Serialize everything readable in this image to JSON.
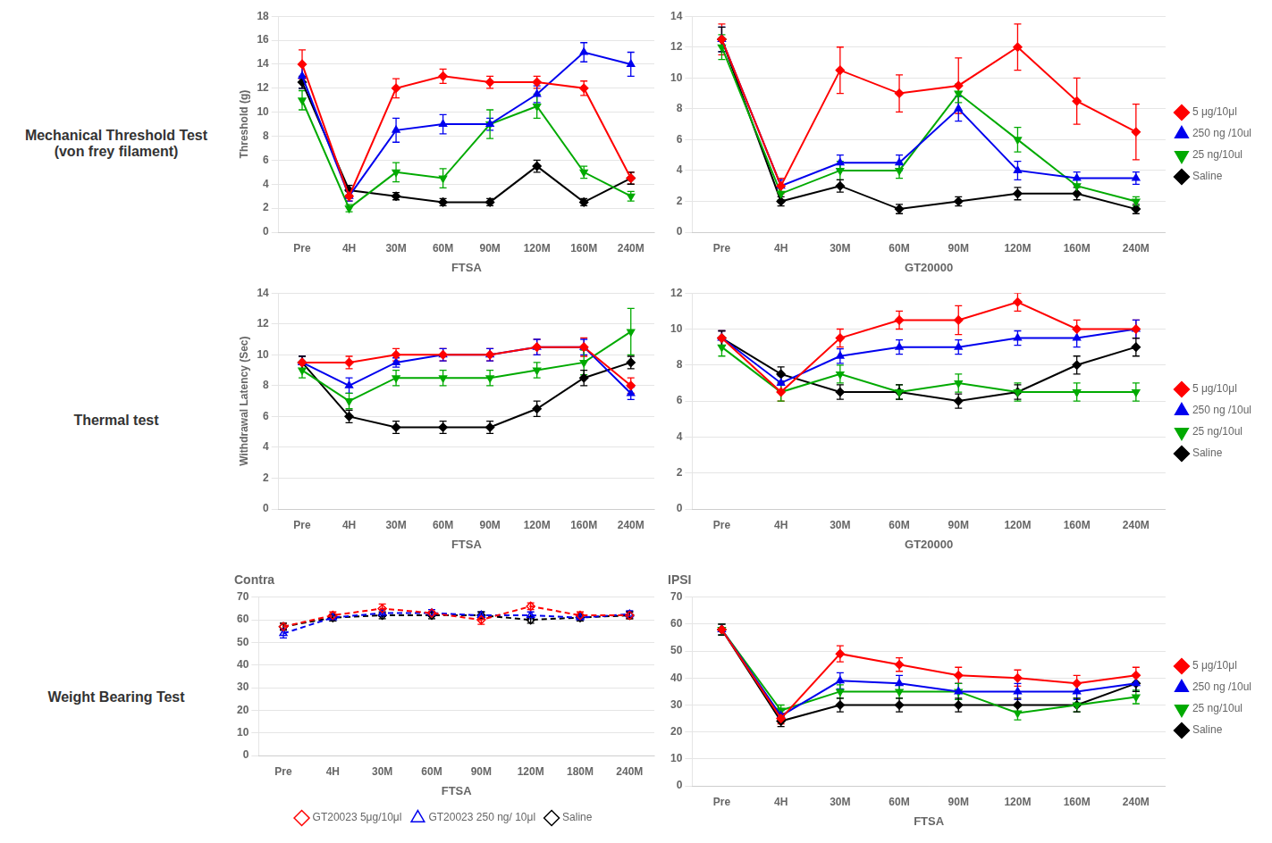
{
  "chart_data": [
    {
      "type": "line",
      "x_label": "FTSA",
      "y_label": "Threshold (g)",
      "annotations": [
        "Mechanical Threshold Test\n(von frey filament)"
      ],
      "categories": [
        "Pre",
        "4H",
        "30M",
        "60M",
        "90M",
        "120M",
        "160M",
        "240M"
      ],
      "ylim": [
        0,
        18
      ],
      "yticks": [
        0,
        2,
        4,
        6,
        8,
        10,
        12,
        14,
        16,
        18
      ],
      "grid": "y",
      "series": [
        {
          "name": "5 μg/10μl",
          "color": "#FF0000",
          "marker": "diamond",
          "line_style": "solid",
          "values": [
            14.0,
            3.0,
            12.0,
            13.0,
            12.5,
            12.5,
            12.0,
            4.5
          ],
          "errors": [
            1.2,
            0.4,
            0.8,
            0.6,
            0.5,
            0.5,
            0.6,
            0.5
          ]
        },
        {
          "name": "250 ng /10ul",
          "color": "#0000EE",
          "marker": "triangle-up",
          "line_style": "solid",
          "values": [
            13.0,
            3.0,
            8.5,
            9.0,
            9.0,
            11.5,
            15.0,
            14.0
          ],
          "errors": [
            1.0,
            0.4,
            1.0,
            0.8,
            0.5,
            0.7,
            0.8,
            1.0
          ]
        },
        {
          "name": "25 ng/10ul",
          "color": "#00AA00",
          "marker": "triangle-down",
          "line_style": "solid",
          "values": [
            11.0,
            2.0,
            5.0,
            4.5,
            9.0,
            10.5,
            5.0,
            3.0
          ],
          "errors": [
            0.8,
            0.3,
            0.8,
            0.8,
            1.2,
            1.0,
            0.5,
            0.4
          ]
        },
        {
          "name": "Saline",
          "color": "#000000",
          "marker": "diamond",
          "line_style": "solid",
          "values": [
            12.5,
            3.5,
            3.0,
            2.5,
            2.5,
            5.5,
            2.5,
            4.5
          ],
          "errors": [
            0.5,
            0.4,
            0.3,
            0.3,
            0.3,
            0.5,
            0.3,
            0.5
          ]
        }
      ]
    },
    {
      "type": "line",
      "x_label": "GT20000",
      "legend": "right",
      "categories": [
        "Pre",
        "4H",
        "30M",
        "60M",
        "90M",
        "120M",
        "160M",
        "240M"
      ],
      "ylim": [
        0,
        14
      ],
      "yticks": [
        0,
        2,
        4,
        6,
        8,
        10,
        12,
        14
      ],
      "grid": "y",
      "series": [
        {
          "name": "5 μg/10μl",
          "color": "#FF0000",
          "marker": "diamond",
          "line_style": "solid",
          "values": [
            12.5,
            3.0,
            10.5,
            9.0,
            9.5,
            12.0,
            8.5,
            6.5
          ],
          "errors": [
            1.0,
            0.5,
            1.5,
            1.2,
            1.8,
            1.5,
            1.5,
            1.8
          ]
        },
        {
          "name": "250 ng /10ul",
          "color": "#0000EE",
          "marker": "triangle-up",
          "line_style": "solid",
          "values": [
            12.5,
            3.0,
            4.5,
            4.5,
            8.0,
            4.0,
            3.5,
            3.5
          ],
          "errors": [
            0.8,
            0.4,
            0.5,
            0.5,
            0.8,
            0.6,
            0.4,
            0.4
          ]
        },
        {
          "name": "25 ng/10ul",
          "color": "#00AA00",
          "marker": "triangle-down",
          "line_style": "solid",
          "values": [
            12.0,
            2.5,
            4.0,
            4.0,
            9.0,
            6.0,
            3.0,
            2.0
          ],
          "errors": [
            0.8,
            0.4,
            0.6,
            0.5,
            0.6,
            0.8,
            0.5,
            0.3
          ]
        },
        {
          "name": "Saline",
          "color": "#000000",
          "marker": "diamond",
          "line_style": "solid",
          "values": [
            12.5,
            2.0,
            3.0,
            1.5,
            2.0,
            2.5,
            2.5,
            1.5
          ],
          "errors": [
            0.8,
            0.3,
            0.4,
            0.3,
            0.3,
            0.4,
            0.4,
            0.3
          ]
        }
      ]
    },
    {
      "type": "line",
      "x_label": "FTSA",
      "y_label": "Withdrawal Latency (Sec)",
      "annotations": [
        "Thermal test"
      ],
      "categories": [
        "Pre",
        "4H",
        "30M",
        "60M",
        "90M",
        "120M",
        "160M",
        "240M"
      ],
      "ylim": [
        0,
        14
      ],
      "yticks": [
        0,
        2,
        4,
        6,
        8,
        10,
        12,
        14
      ],
      "grid": "y",
      "series": [
        {
          "name": "5 μg/10μl",
          "color": "#FF0000",
          "marker": "diamond",
          "line_style": "solid",
          "values": [
            9.5,
            9.5,
            10.0,
            10.0,
            10.0,
            10.5,
            10.5,
            8.0
          ],
          "errors": [
            0.4,
            0.4,
            0.4,
            0.4,
            0.4,
            0.5,
            0.6,
            0.5
          ]
        },
        {
          "name": "250 ng /10ul",
          "color": "#0000EE",
          "marker": "triangle-up",
          "line_style": "solid",
          "values": [
            9.5,
            8.0,
            9.5,
            10.0,
            10.0,
            10.5,
            10.5,
            7.5
          ],
          "errors": [
            0.4,
            0.5,
            0.3,
            0.4,
            0.4,
            0.5,
            0.5,
            0.4
          ]
        },
        {
          "name": "25 ng/10ul",
          "color": "#00AA00",
          "marker": "triangle-down",
          "line_style": "solid",
          "values": [
            9.0,
            7.0,
            8.5,
            8.5,
            8.5,
            9.0,
            9.5,
            11.5
          ],
          "errors": [
            0.5,
            0.5,
            0.5,
            0.5,
            0.5,
            0.5,
            0.8,
            1.5
          ]
        },
        {
          "name": "Saline",
          "color": "#000000",
          "marker": "diamond",
          "line_style": "solid",
          "values": [
            9.5,
            6.0,
            5.3,
            5.3,
            5.3,
            6.5,
            8.5,
            9.5
          ],
          "errors": [
            0.4,
            0.4,
            0.4,
            0.4,
            0.4,
            0.5,
            0.5,
            0.4
          ]
        }
      ]
    },
    {
      "type": "line",
      "x_label": "GT20000",
      "legend": "right",
      "categories": [
        "Pre",
        "4H",
        "30M",
        "60M",
        "90M",
        "120M",
        "160M",
        "240M"
      ],
      "ylim": [
        0,
        12
      ],
      "yticks": [
        0,
        2,
        4,
        6,
        8,
        10,
        12
      ],
      "grid": "y",
      "series": [
        {
          "name": "5 μg/10μl",
          "color": "#FF0000",
          "marker": "diamond",
          "line_style": "solid",
          "values": [
            9.5,
            6.5,
            9.5,
            10.5,
            10.5,
            11.5,
            10.0,
            10.0
          ],
          "errors": [
            0.4,
            0.5,
            0.5,
            0.5,
            0.8,
            0.5,
            0.5,
            0.5
          ]
        },
        {
          "name": "250 ng /10ul",
          "color": "#0000EE",
          "marker": "triangle-up",
          "line_style": "solid",
          "values": [
            9.5,
            7.0,
            8.5,
            9.0,
            9.0,
            9.5,
            9.5,
            10.0
          ],
          "errors": [
            0.4,
            0.4,
            0.4,
            0.4,
            0.4,
            0.4,
            0.5,
            0.5
          ]
        },
        {
          "name": "25 ng/10ul",
          "color": "#00AA00",
          "marker": "triangle-down",
          "line_style": "solid",
          "values": [
            9.0,
            6.5,
            7.5,
            6.5,
            7.0,
            6.5,
            6.5,
            6.5
          ],
          "errors": [
            0.5,
            0.5,
            0.5,
            0.4,
            0.5,
            0.5,
            0.5,
            0.5
          ]
        },
        {
          "name": "Saline",
          "color": "#000000",
          "marker": "diamond",
          "line_style": "solid",
          "values": [
            9.5,
            7.5,
            6.5,
            6.5,
            6.0,
            6.5,
            8.0,
            9.0
          ],
          "errors": [
            0.4,
            0.4,
            0.4,
            0.4,
            0.4,
            0.4,
            0.5,
            0.5
          ]
        }
      ]
    },
    {
      "type": "line",
      "title": "Contra",
      "x_label": "FTSA",
      "legend": "bottom",
      "annotations": [
        "Weight Bearing Test"
      ],
      "categories": [
        "Pre",
        "4H",
        "30M",
        "60M",
        "90M",
        "120M",
        "180M",
        "240M"
      ],
      "ylim": [
        0,
        70
      ],
      "yticks": [
        0,
        10,
        20,
        30,
        40,
        50,
        60,
        70
      ],
      "grid": "y",
      "series": [
        {
          "name": "GT20023 5μg/10μl",
          "color": "#FF0000",
          "marker": "open-diamond",
          "line_style": "dashed",
          "values": [
            57.0,
            62.0,
            65.0,
            63.0,
            60.0,
            66.0,
            62.0,
            62.0
          ],
          "errors": [
            1.5,
            1.5,
            2.0,
            1.5,
            2.0,
            1.5,
            1.5,
            1.5
          ]
        },
        {
          "name": "GT20023 250 ng/ 10μl",
          "color": "#0000EE",
          "marker": "open-triangle-up",
          "line_style": "dashed",
          "values": [
            54.0,
            61.0,
            63.0,
            63.0,
            62.0,
            62.0,
            61.0,
            62.5
          ],
          "errors": [
            2.0,
            1.5,
            1.5,
            1.5,
            1.5,
            1.5,
            1.5,
            1.5
          ]
        },
        {
          "name": "Saline",
          "color": "#000000",
          "marker": "open-diamond",
          "line_style": "dashed",
          "values": [
            57.0,
            61.0,
            62.0,
            62.0,
            62.0,
            60.0,
            61.0,
            62.0
          ],
          "errors": [
            1.5,
            1.5,
            1.5,
            1.5,
            1.5,
            1.5,
            1.5,
            1.5
          ]
        }
      ]
    },
    {
      "type": "line",
      "title": "IPSI",
      "x_label": "FTSA",
      "legend": "right",
      "categories": [
        "Pre",
        "4H",
        "30M",
        "60M",
        "90M",
        "120M",
        "160M",
        "240M"
      ],
      "ylim": [
        0,
        70
      ],
      "yticks": [
        0,
        10,
        20,
        30,
        40,
        50,
        60,
        70
      ],
      "grid": "y",
      "series": [
        {
          "name": "5 μg/10μl",
          "color": "#FF0000",
          "marker": "diamond",
          "line_style": "solid",
          "values": [
            58.0,
            25.0,
            49.0,
            45.0,
            41.0,
            40.0,
            38.0,
            41.0
          ],
          "errors": [
            2.0,
            2.0,
            3.0,
            2.5,
            3.0,
            3.0,
            3.0,
            3.0
          ]
        },
        {
          "name": "250 ng /10ul",
          "color": "#0000EE",
          "marker": "triangle-up",
          "line_style": "solid",
          "values": [
            58.0,
            26.0,
            39.0,
            38.0,
            35.0,
            35.0,
            35.0,
            38.0
          ],
          "errors": [
            2.0,
            2.0,
            3.0,
            3.0,
            3.0,
            3.0,
            3.0,
            3.0
          ]
        },
        {
          "name": "25 ng/10ul",
          "color": "#00AA00",
          "marker": "triangle-down",
          "line_style": "solid",
          "values": [
            58.0,
            28.0,
            35.0,
            35.0,
            35.0,
            27.0,
            30.0,
            33.0
          ],
          "errors": [
            2.0,
            2.0,
            2.5,
            2.5,
            3.0,
            2.5,
            2.5,
            2.5
          ]
        },
        {
          "name": "Saline",
          "color": "#000000",
          "marker": "diamond",
          "line_style": "solid",
          "values": [
            58.0,
            24.0,
            30.0,
            30.0,
            30.0,
            30.0,
            30.0,
            38.0
          ],
          "errors": [
            2.0,
            2.0,
            2.5,
            2.5,
            2.5,
            2.5,
            2.5,
            3.0
          ]
        }
      ]
    }
  ]
}
